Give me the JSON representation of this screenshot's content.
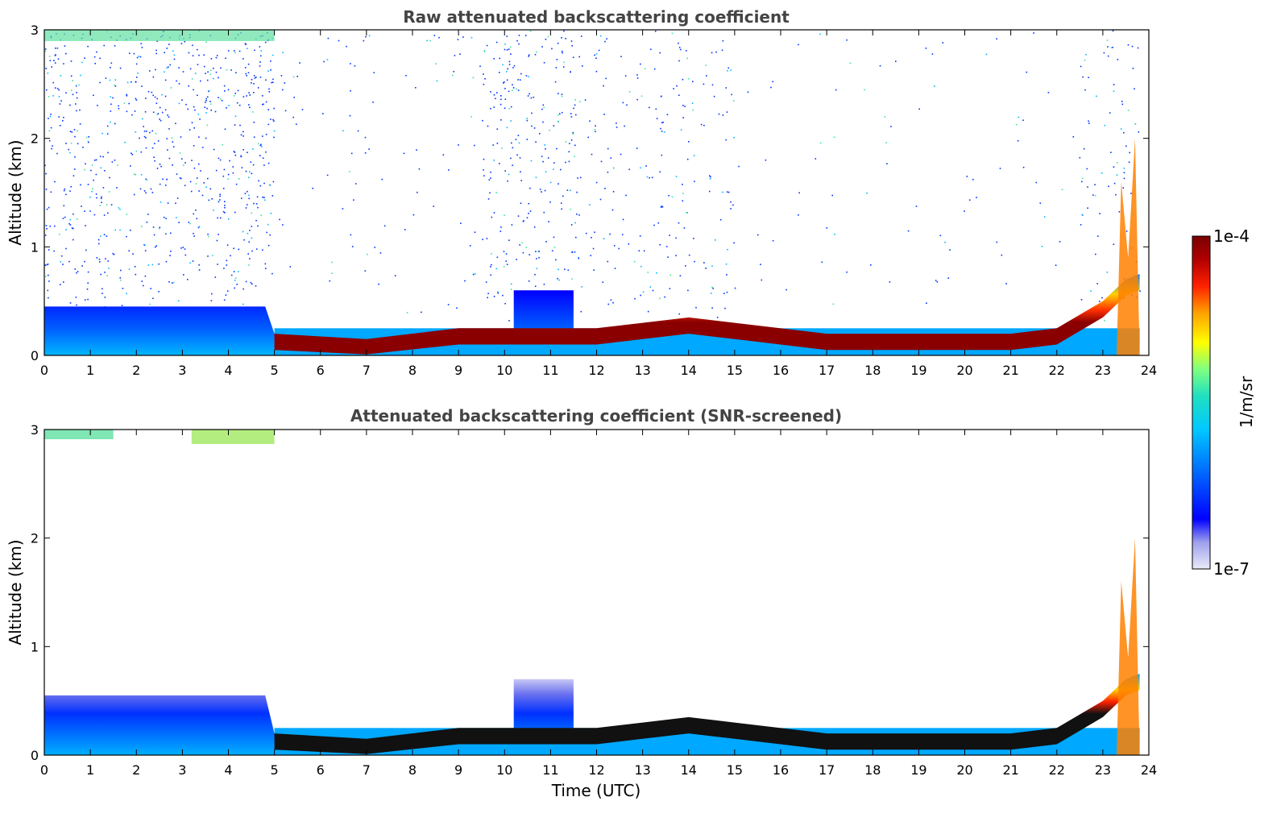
{
  "chart_data": [
    {
      "type": "heatmap",
      "title": "Raw attenuated backscattering coefficient",
      "xlabel": "",
      "ylabel": "Altitude (km)",
      "xlim": [
        0,
        24
      ],
      "ylim": [
        0,
        3
      ],
      "x_ticks": [
        "0",
        "1",
        "2",
        "3",
        "4",
        "5",
        "6",
        "7",
        "8",
        "9",
        "10",
        "11",
        "12",
        "13",
        "14",
        "15",
        "16",
        "17",
        "18",
        "19",
        "20",
        "21",
        "22",
        "23",
        "24"
      ],
      "y_ticks": [
        "0",
        "1",
        "2",
        "3"
      ],
      "layer_top_km": [
        [
          0,
          0.25
        ],
        [
          5,
          0.2
        ],
        [
          7,
          0.15
        ],
        [
          9,
          0.25
        ],
        [
          10,
          0.25
        ],
        [
          12,
          0.25
        ],
        [
          13,
          0.3
        ],
        [
          14,
          0.35
        ],
        [
          15,
          0.3
        ],
        [
          17,
          0.2
        ],
        [
          19,
          0.2
        ],
        [
          21,
          0.2
        ],
        [
          22,
          0.25
        ],
        [
          23,
          0.5
        ],
        [
          23.5,
          0.7
        ],
        [
          23.8,
          0.75
        ]
      ],
      "aerosol_top_km": [
        [
          0,
          0.45
        ],
        [
          2,
          0.45
        ],
        [
          3,
          0.45
        ],
        [
          4.8,
          0.45
        ],
        [
          5,
          0.2
        ],
        [
          10.2,
          0.2
        ],
        [
          10.2,
          0.6
        ],
        [
          11.5,
          0.6
        ],
        [
          11.5,
          0.3
        ]
      ],
      "noise_top_km": 3
    },
    {
      "type": "heatmap",
      "title": "Attenuated backscattering coefficient (SNR-screened)",
      "xlabel": "Time (UTC)",
      "ylabel": "Altitude (km)",
      "xlim": [
        0,
        24
      ],
      "ylim": [
        0,
        3
      ],
      "x_ticks": [
        "0",
        "1",
        "2",
        "3",
        "4",
        "5",
        "6",
        "7",
        "8",
        "9",
        "10",
        "11",
        "12",
        "13",
        "14",
        "15",
        "16",
        "17",
        "18",
        "19",
        "20",
        "21",
        "22",
        "23",
        "24"
      ],
      "y_ticks": [
        "0",
        "1",
        "2",
        "3"
      ],
      "layer_top_km": [
        [
          0,
          0.25
        ],
        [
          5,
          0.2
        ],
        [
          7,
          0.15
        ],
        [
          9,
          0.25
        ],
        [
          10,
          0.25
        ],
        [
          12,
          0.25
        ],
        [
          13,
          0.3
        ],
        [
          14,
          0.35
        ],
        [
          15,
          0.3
        ],
        [
          17,
          0.2
        ],
        [
          19,
          0.2
        ],
        [
          21,
          0.2
        ],
        [
          22,
          0.25
        ],
        [
          23,
          0.5
        ],
        [
          23.5,
          0.7
        ],
        [
          23.8,
          0.75
        ]
      ],
      "aerosol_top_km": [
        [
          0,
          0.55
        ],
        [
          2,
          0.55
        ],
        [
          4.8,
          0.55
        ],
        [
          5,
          0.2
        ],
        [
          10.2,
          0.2
        ],
        [
          10.2,
          0.7
        ],
        [
          11.5,
          0.7
        ],
        [
          11.5,
          0.3
        ]
      ]
    }
  ],
  "colorbar": {
    "label": "1/m/sr",
    "max_label": "1e-4",
    "min_label": "1e-7",
    "colors": [
      "#e8e8f8",
      "#9ea0ec",
      "#0000ff",
      "#0064ff",
      "#00c8ff",
      "#30e0c0",
      "#80ff80",
      "#ffff00",
      "#ffa000",
      "#ff2000",
      "#b00000",
      "#800000"
    ]
  }
}
